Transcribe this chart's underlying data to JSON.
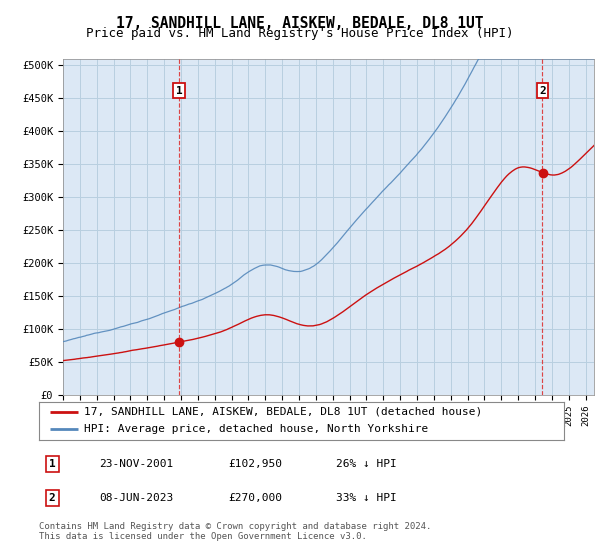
{
  "title": "17, SANDHILL LANE, AISKEW, BEDALE, DL8 1UT",
  "subtitle": "Price paid vs. HM Land Registry's House Price Index (HPI)",
  "ylabel_ticks": [
    "£0",
    "£50K",
    "£100K",
    "£150K",
    "£200K",
    "£250K",
    "£300K",
    "£350K",
    "£400K",
    "£450K",
    "£500K"
  ],
  "ytick_vals": [
    0,
    50000,
    100000,
    150000,
    200000,
    250000,
    300000,
    350000,
    400000,
    450000,
    500000
  ],
  "ylim": [
    0,
    510000
  ],
  "xlim_start": 1995.0,
  "xlim_end": 2026.5,
  "plot_bg_color": "#dce8f5",
  "background_color": "#ffffff",
  "grid_color": "#b8cfe0",
  "hpi_color": "#5588bb",
  "price_color": "#cc1111",
  "vline_color": "#dd3333",
  "transaction1_x": 2001.9,
  "transaction1_price": 102950,
  "transaction2_x": 2023.44,
  "transaction2_price": 270000,
  "legend_label1": "17, SANDHILL LANE, AISKEW, BEDALE, DL8 1UT (detached house)",
  "legend_label2": "HPI: Average price, detached house, North Yorkshire",
  "table_rows": [
    {
      "num": "1",
      "date": "23-NOV-2001",
      "price": "£102,950",
      "hpi": "26% ↓ HPI"
    },
    {
      "num": "2",
      "date": "08-JUN-2023",
      "price": "£270,000",
      "hpi": "33% ↓ HPI"
    }
  ],
  "footnote": "Contains HM Land Registry data © Crown copyright and database right 2024.\nThis data is licensed under the Open Government Licence v3.0.",
  "title_fontsize": 10.5,
  "subtitle_fontsize": 9,
  "tick_fontsize": 7.5,
  "legend_fontsize": 8,
  "table_fontsize": 8,
  "footnote_fontsize": 6.5
}
